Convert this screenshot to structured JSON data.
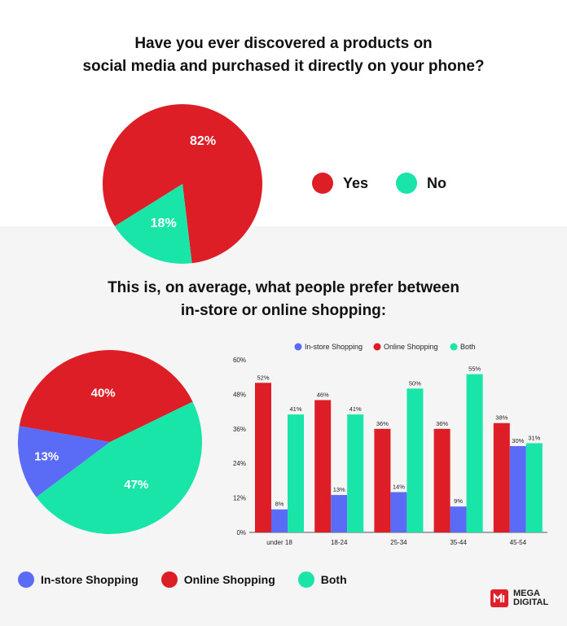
{
  "section1": {
    "title_line1": "Have you ever discovered a products on",
    "title_line2": "social media and purchased it directly on your phone?",
    "legend": [
      {
        "label": "Yes",
        "color": "#dd1e27"
      },
      {
        "label": "No",
        "color": "#19e5a9"
      }
    ]
  },
  "section2": {
    "title_line1": "This is, on average, what people prefer between",
    "title_line2": "in-store or online shopping:",
    "legend": [
      {
        "label": "In-store Shopping",
        "color": "#5a6cf6"
      },
      {
        "label": "Online Shopping",
        "color": "#dd1e27"
      },
      {
        "label": "Both",
        "color": "#19e5a9"
      }
    ]
  },
  "logo": {
    "line1": "MEGA",
    "line2": "DIGITAL",
    "icon": "mega-digital-logo-icon"
  },
  "chart_data": [
    {
      "type": "pie",
      "slices": [
        {
          "label": "Yes",
          "value": 82,
          "text": "82%",
          "color": "#dd1e27"
        },
        {
          "label": "No",
          "value": 18,
          "text": "18%",
          "color": "#19e5a9"
        }
      ]
    },
    {
      "type": "pie",
      "slices": [
        {
          "label": "Online Shopping",
          "value": 40,
          "text": "40%",
          "color": "#dd1e27"
        },
        {
          "label": "Both",
          "value": 47,
          "text": "47%",
          "color": "#19e5a9"
        },
        {
          "label": "In-store Shopping",
          "value": 13,
          "text": "13%",
          "color": "#5a6cf6"
        }
      ]
    },
    {
      "type": "bar",
      "categories": [
        "under 18",
        "18-24",
        "25-34",
        "35-44",
        "45-54"
      ],
      "series": [
        {
          "name": "In-store Shopping",
          "color": "#5a6cf6",
          "values": [
            8,
            13,
            14,
            9,
            30
          ],
          "labels": [
            "8%",
            "13%",
            "14%",
            "9%",
            "30%"
          ]
        },
        {
          "name": "Online Shopping",
          "color": "#dd1e27",
          "values": [
            52,
            46,
            36,
            36,
            38
          ],
          "labels": [
            "52%",
            "46%",
            "36%",
            "36%",
            "38%"
          ]
        },
        {
          "name": "Both",
          "color": "#19e5a9",
          "values": [
            41,
            41,
            50,
            55,
            31
          ],
          "labels": [
            "41%",
            "41%",
            "50%",
            "55%",
            "31%"
          ]
        }
      ],
      "bar_order": [
        "Online Shopping",
        "In-store Shopping",
        "Both"
      ],
      "ylim": [
        0,
        60
      ],
      "yticks": [
        "0%",
        "12%",
        "24%",
        "36%",
        "48%",
        "60%"
      ],
      "legend_position": "top",
      "grid": false
    }
  ]
}
